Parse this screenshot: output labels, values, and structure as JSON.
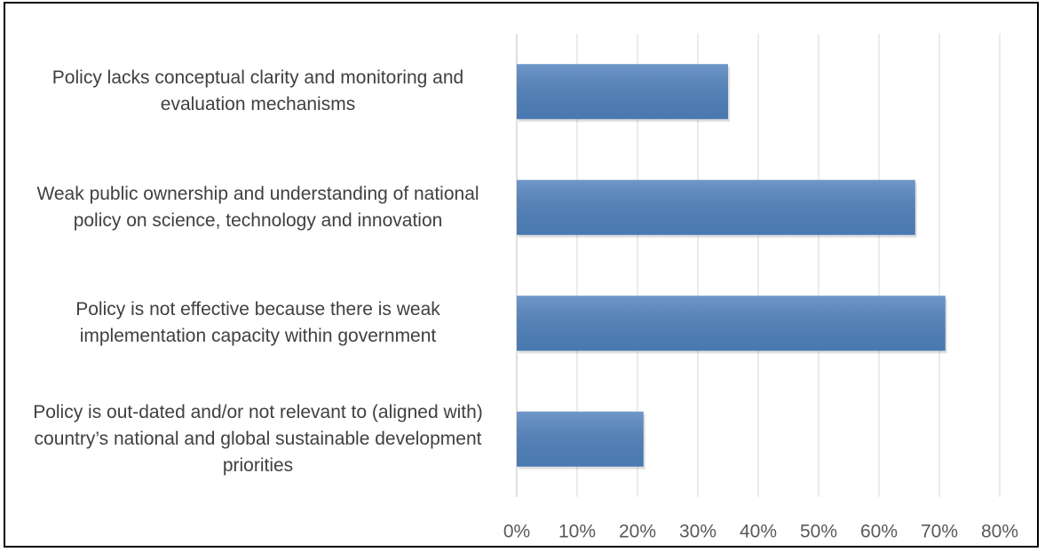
{
  "chart_data": {
    "type": "barh",
    "categories": [
      "Policy lacks conceptual clarity and monitoring and evaluation mechanisms",
      "Weak public ownership and understanding of national policy on science, technology and innovation",
      "Policy is not effective because there is weak implementation capacity within government",
      "Policy is out-dated and/or not relevant to (aligned with) country’s national and global sustainable development priorities"
    ],
    "values": [
      35,
      66,
      71,
      21
    ],
    "color": "#4f81bd",
    "xlim": [
      0,
      80
    ],
    "xticks": [
      {
        "value": 0,
        "label": "0%"
      },
      {
        "value": 10,
        "label": "10%"
      },
      {
        "value": 20,
        "label": "20%"
      },
      {
        "value": 30,
        "label": "30%"
      },
      {
        "value": 40,
        "label": "40%"
      },
      {
        "value": 50,
        "label": "50%"
      },
      {
        "value": 60,
        "label": "60%"
      },
      {
        "value": 70,
        "label": "70%"
      },
      {
        "value": 80,
        "label": "80%"
      }
    ],
    "grid": true
  }
}
